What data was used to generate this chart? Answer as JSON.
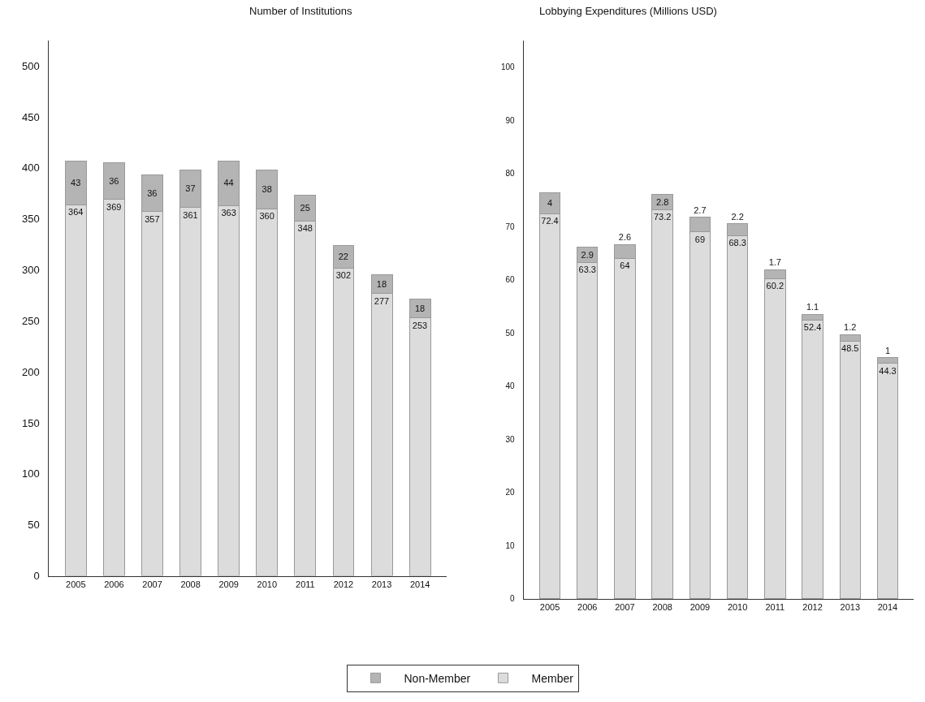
{
  "chart_data": [
    {
      "type": "bar",
      "title": "Number of Institutions",
      "stacked": true,
      "data_labels": true,
      "categories": [
        "2005",
        "2006",
        "2007",
        "2008",
        "2009",
        "2010",
        "2011",
        "2012",
        "2013",
        "2014"
      ],
      "series": [
        {
          "name": "Member",
          "color": "#dcdcdc",
          "values": [
            364,
            369,
            357,
            361,
            363,
            360,
            348,
            302,
            277,
            253
          ]
        },
        {
          "name": "Non-Member",
          "color": "#b4b4b4",
          "values": [
            43,
            36,
            36,
            37,
            44,
            38,
            25,
            22,
            18,
            18
          ]
        }
      ],
      "ylim": [
        0,
        525
      ],
      "yticks": [
        0,
        50,
        100,
        150,
        200,
        250,
        300,
        350,
        400,
        450,
        500
      ],
      "grid": false,
      "legend": "bottom"
    },
    {
      "type": "bar",
      "title": "Lobbying Expenditures (Millions USD)",
      "stacked": true,
      "data_labels": true,
      "categories": [
        "2005",
        "2006",
        "2007",
        "2008",
        "2009",
        "2010",
        "2011",
        "2012",
        "2013",
        "2014"
      ],
      "series": [
        {
          "name": "Member",
          "color": "#dcdcdc",
          "values": [
            72.4,
            63.3,
            64,
            73.2,
            69,
            68.3,
            60.2,
            52.4,
            48.5,
            44.3
          ]
        },
        {
          "name": "Non-Member",
          "color": "#b4b4b4",
          "values": [
            4,
            2.9,
            2.6,
            2.8,
            2.7,
            2.2,
            1.7,
            1.1,
            1.2,
            1
          ]
        }
      ],
      "ylim": [
        0,
        105
      ],
      "yticks": [
        0,
        10,
        20,
        30,
        40,
        50,
        60,
        70,
        80,
        90,
        100
      ],
      "grid": false,
      "legend": "bottom"
    }
  ]
}
